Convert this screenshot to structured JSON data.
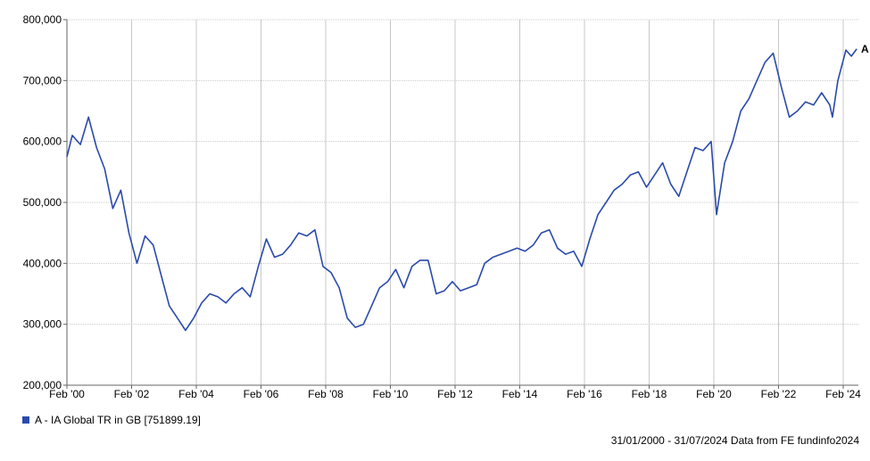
{
  "chart_data": {
    "type": "line",
    "title": "",
    "xlabel": "",
    "ylabel": "",
    "ylim": [
      200000,
      800000
    ],
    "xlim": [
      "2000-01-31",
      "2024-07-31"
    ],
    "y_ticks": [
      "200,000",
      "300,000",
      "400,000",
      "500,000",
      "600,000",
      "700,000",
      "800,000"
    ],
    "y_tick_values": [
      200000,
      300000,
      400000,
      500000,
      600000,
      700000,
      800000
    ],
    "x_ticks": [
      "Feb '00",
      "Feb '02",
      "Feb '04",
      "Feb '06",
      "Feb '08",
      "Feb '10",
      "Feb '12",
      "Feb '14",
      "Feb '16",
      "Feb '18",
      "Feb '20",
      "Feb '22",
      "Feb '24"
    ],
    "x_tick_values": [
      "2000-02",
      "2002-02",
      "2004-02",
      "2006-02",
      "2008-02",
      "2010-02",
      "2012-02",
      "2014-02",
      "2016-02",
      "2018-02",
      "2020-02",
      "2022-02",
      "2024-02"
    ],
    "grid": true,
    "legend_position": "bottom-left",
    "series": [
      {
        "name": "A - IA Global TR in GB [751899.19]",
        "end_label": "A",
        "color": "#2a4aab",
        "x": [
          "2000-01",
          "2000-04",
          "2000-07",
          "2000-10",
          "2001-01",
          "2001-04",
          "2001-07",
          "2001-10",
          "2002-01",
          "2002-04",
          "2002-07",
          "2002-10",
          "2003-01",
          "2003-04",
          "2003-07",
          "2003-10",
          "2004-01",
          "2004-04",
          "2004-07",
          "2004-10",
          "2005-01",
          "2005-04",
          "2005-07",
          "2005-10",
          "2006-01",
          "2006-04",
          "2006-07",
          "2006-10",
          "2007-01",
          "2007-04",
          "2007-07",
          "2007-10",
          "2008-01",
          "2008-04",
          "2008-07",
          "2008-10",
          "2009-01",
          "2009-04",
          "2009-07",
          "2009-10",
          "2010-01",
          "2010-04",
          "2010-07",
          "2010-10",
          "2011-01",
          "2011-04",
          "2011-07",
          "2011-10",
          "2012-01",
          "2012-04",
          "2012-07",
          "2012-10",
          "2013-01",
          "2013-04",
          "2013-07",
          "2013-10",
          "2014-01",
          "2014-04",
          "2014-07",
          "2014-10",
          "2015-01",
          "2015-04",
          "2015-07",
          "2015-10",
          "2016-01",
          "2016-04",
          "2016-07",
          "2016-10",
          "2017-01",
          "2017-04",
          "2017-07",
          "2017-10",
          "2018-01",
          "2018-04",
          "2018-07",
          "2018-10",
          "2019-01",
          "2019-04",
          "2019-07",
          "2019-10",
          "2020-01",
          "2020-03",
          "2020-06",
          "2020-09",
          "2020-12",
          "2021-03",
          "2021-06",
          "2021-09",
          "2021-12",
          "2022-03",
          "2022-06",
          "2022-09",
          "2022-12",
          "2023-03",
          "2023-06",
          "2023-09",
          "2023-10",
          "2023-12",
          "2024-03",
          "2024-05",
          "2024-07"
        ],
        "values": [
          575000,
          610000,
          595000,
          640000,
          590000,
          555000,
          490000,
          520000,
          450000,
          400000,
          445000,
          430000,
          380000,
          330000,
          310000,
          290000,
          310000,
          335000,
          350000,
          345000,
          335000,
          350000,
          360000,
          345000,
          395000,
          440000,
          410000,
          415000,
          430000,
          450000,
          445000,
          455000,
          395000,
          385000,
          360000,
          310000,
          295000,
          300000,
          330000,
          360000,
          370000,
          390000,
          360000,
          395000,
          405000,
          405000,
          350000,
          355000,
          370000,
          355000,
          360000,
          365000,
          400000,
          410000,
          415000,
          420000,
          425000,
          420000,
          430000,
          450000,
          455000,
          425000,
          415000,
          420000,
          395000,
          440000,
          480000,
          500000,
          520000,
          530000,
          545000,
          550000,
          525000,
          545000,
          565000,
          530000,
          510000,
          550000,
          590000,
          585000,
          600000,
          480000,
          565000,
          600000,
          650000,
          670000,
          700000,
          730000,
          745000,
          690000,
          640000,
          650000,
          665000,
          660000,
          680000,
          660000,
          640000,
          700000,
          750000,
          740000,
          751899
        ]
      }
    ]
  },
  "legend": {
    "label": "A - IA Global TR in GB [751899.19]",
    "swatch_color": "#2a4aab"
  },
  "footer": {
    "text": "31/01/2000 - 31/07/2024 Data from FE fundinfo2024"
  }
}
